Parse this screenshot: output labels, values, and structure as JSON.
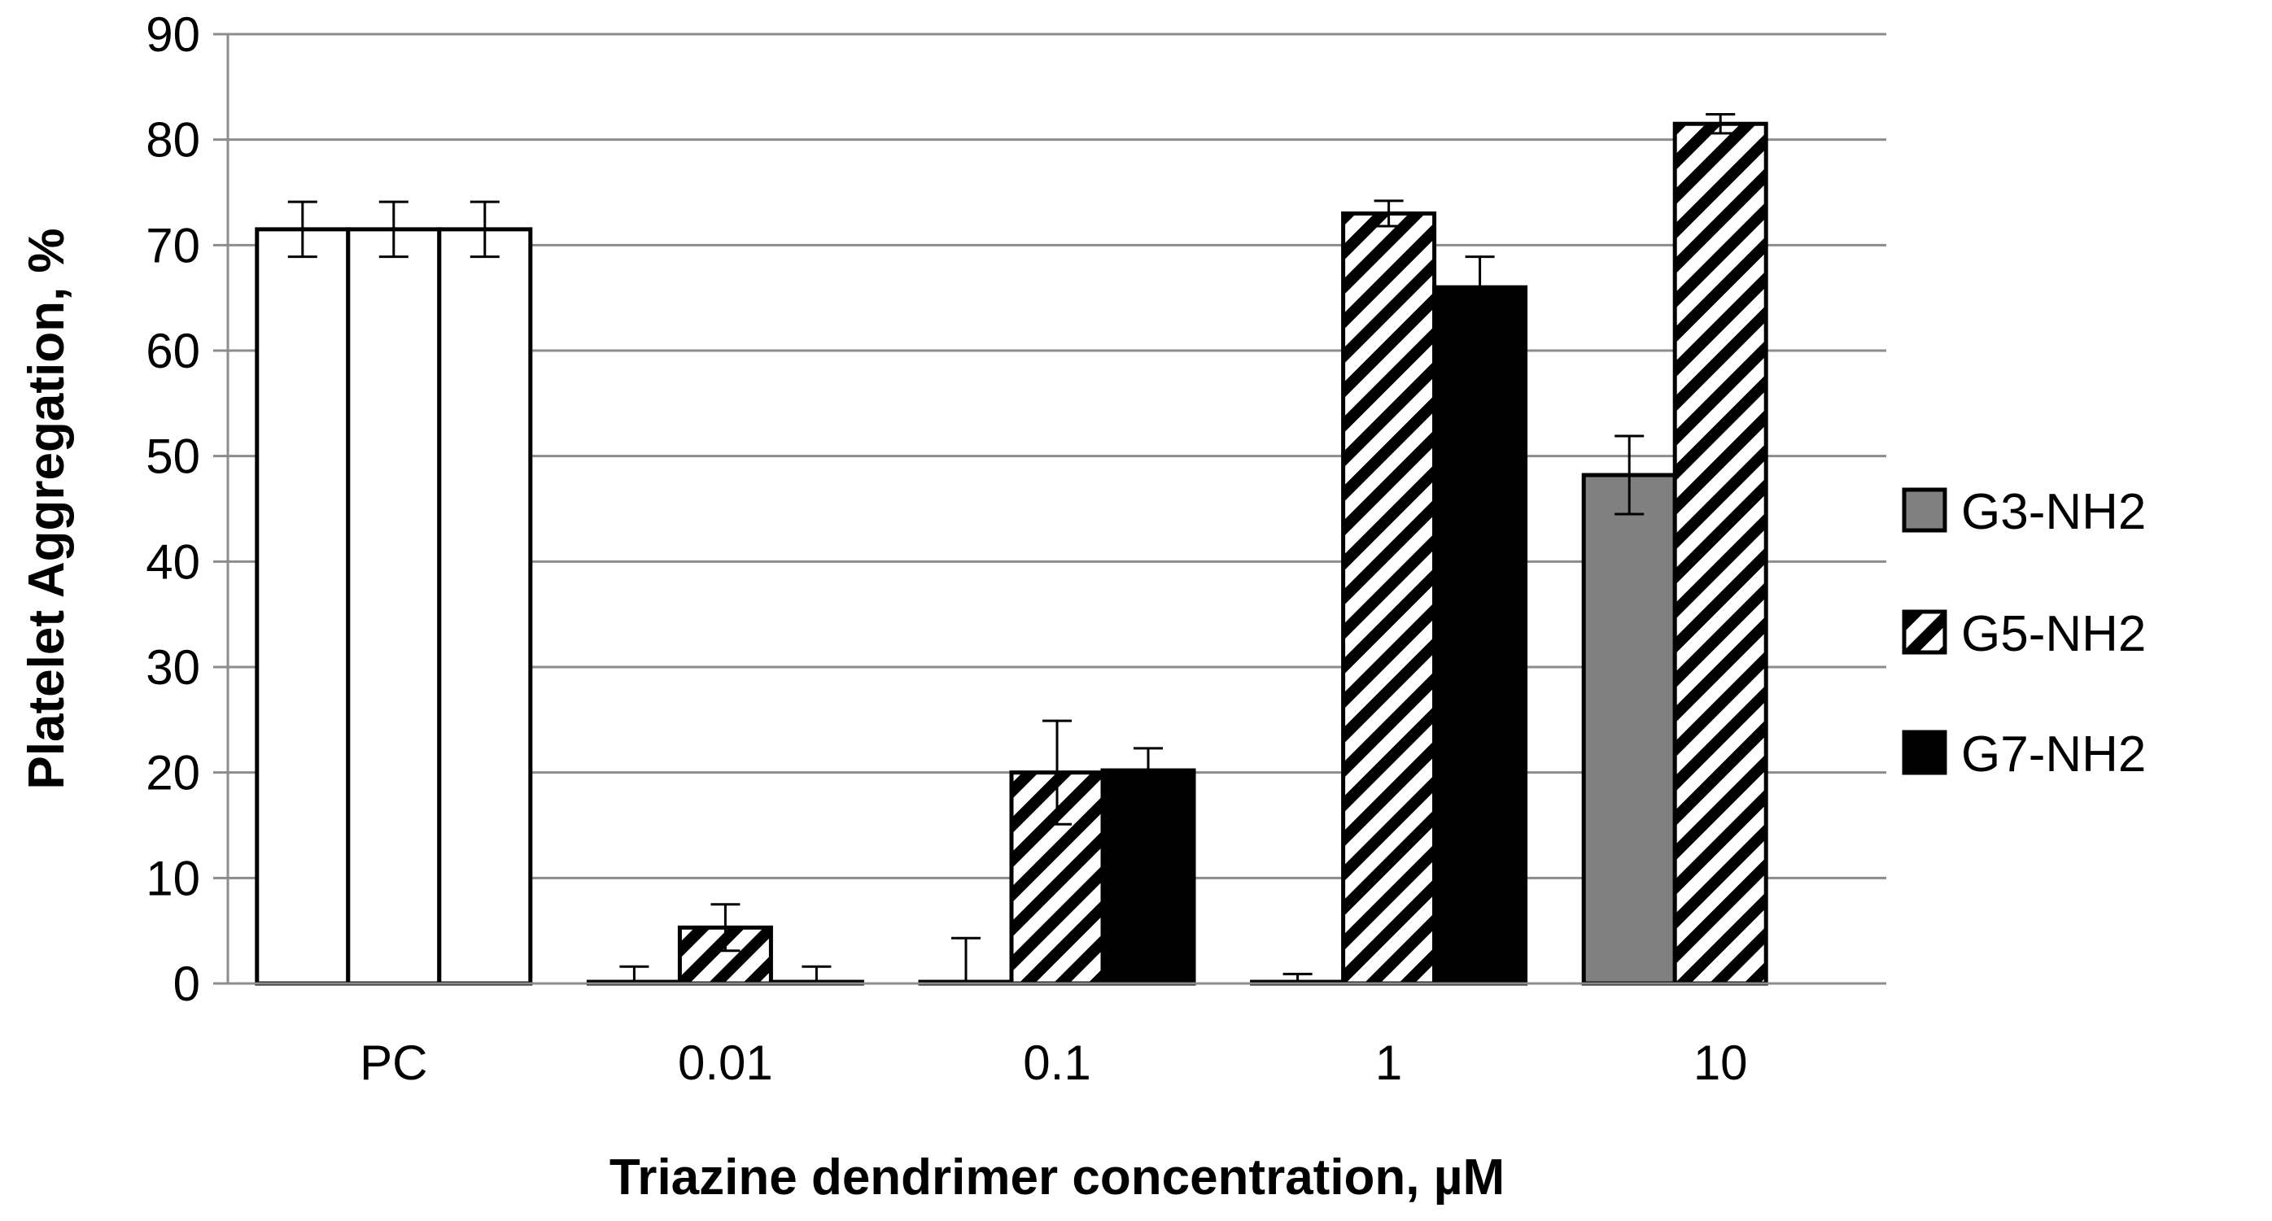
{
  "chart_data": {
    "type": "bar",
    "title": "",
    "xlabel": "Triazine dendrimer concentration, µM",
    "ylabel": "Platelet Aggregation, %",
    "ylim": [
      0,
      90
    ],
    "yticks": [
      0,
      10,
      20,
      30,
      40,
      50,
      60,
      70,
      80,
      90
    ],
    "grid": true,
    "legend_position": "right",
    "categories": [
      "PC",
      "0.01",
      "0.1",
      "1",
      "10"
    ],
    "series": [
      {
        "name": "G3-NH2",
        "pattern": "solid",
        "color": "#808080",
        "values": [
          71.5,
          0,
          0,
          0,
          48.2
        ],
        "errors": [
          2.6,
          1.6,
          4.3,
          0.9,
          3.7
        ]
      },
      {
        "name": "G5-NH2",
        "pattern": "diagonal-stripes",
        "color": "#000000",
        "values": [
          71.5,
          5.3,
          20.0,
          73.0,
          81.5
        ],
        "errors": [
          2.6,
          2.2,
          4.9,
          1.2,
          0.9
        ]
      },
      {
        "name": "G7-NH2",
        "pattern": "solid",
        "color": "#000000",
        "values": [
          71.5,
          0,
          20.2,
          66.0,
          null
        ],
        "errors": [
          2.6,
          1.6,
          2.1,
          2.9,
          null
        ]
      }
    ],
    "pc_group_color": "#ffffff"
  }
}
